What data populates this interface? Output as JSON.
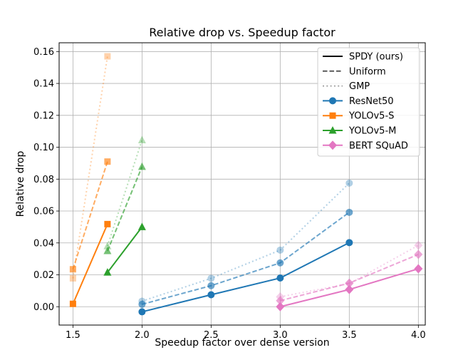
{
  "chart_data": {
    "type": "line",
    "title": "Relative drop vs. Speedup factor",
    "xlabel": "Speedup factor over dense version",
    "ylabel": "Relative drop",
    "xlim": [
      1.4,
      4.05
    ],
    "ylim": [
      -0.0115,
      0.1655
    ],
    "xticks": [
      1.5,
      2.0,
      2.5,
      3.0,
      3.5,
      4.0
    ],
    "xtick_labels": [
      "1.5",
      "2.0",
      "2.5",
      "3.0",
      "3.5",
      "4.0"
    ],
    "yticks": [
      0.0,
      0.02,
      0.04,
      0.06,
      0.08,
      0.1,
      0.12,
      0.14,
      0.16
    ],
    "ytick_labels": [
      "0.00",
      "0.02",
      "0.04",
      "0.06",
      "0.08",
      "0.10",
      "0.12",
      "0.14",
      "0.16"
    ],
    "grid": true,
    "legend_position": "top-right",
    "methods": [
      {
        "name": "SPDY (ours)",
        "style": "solid",
        "opacity": 1.0
      },
      {
        "name": "Uniform",
        "style": "dashed",
        "opacity": 0.65
      },
      {
        "name": "GMP",
        "style": "dotted",
        "opacity": 0.35
      }
    ],
    "models": [
      {
        "name": "ResNet50",
        "color": "#1f77b4",
        "marker": "circle"
      },
      {
        "name": "YOLOv5-S",
        "color": "#ff7f0e",
        "marker": "square"
      },
      {
        "name": "YOLOv5-M",
        "color": "#2ca02c",
        "marker": "triangle"
      },
      {
        "name": "BERT SQuAD",
        "color": "#e377c2",
        "marker": "diamond"
      }
    ],
    "series": [
      {
        "model": "ResNet50",
        "method": "SPDY (ours)",
        "x": [
          2.0,
          2.5,
          3.0,
          3.5
        ],
        "y": [
          -0.0032,
          0.0075,
          0.018,
          0.0402
        ]
      },
      {
        "model": "ResNet50",
        "method": "Uniform",
        "x": [
          2.0,
          2.5,
          3.0,
          3.5
        ],
        "y": [
          0.0015,
          0.0132,
          0.0275,
          0.0592
        ]
      },
      {
        "model": "ResNet50",
        "method": "GMP",
        "x": [
          2.0,
          2.5,
          3.0,
          3.5
        ],
        "y": [
          0.0035,
          0.0178,
          0.0355,
          0.0775
        ]
      },
      {
        "model": "YOLOv5-S",
        "method": "SPDY (ours)",
        "x": [
          1.5,
          1.75
        ],
        "y": [
          0.0018,
          0.0518
        ]
      },
      {
        "model": "YOLOv5-S",
        "method": "Uniform",
        "x": [
          1.5,
          1.75
        ],
        "y": [
          0.0235,
          0.091
        ]
      },
      {
        "model": "YOLOv5-S",
        "method": "GMP",
        "x": [
          1.5,
          1.75
        ],
        "y": [
          0.0178,
          0.157
        ]
      },
      {
        "model": "YOLOv5-M",
        "method": "SPDY (ours)",
        "x": [
          1.75,
          2.0
        ],
        "y": [
          0.0215,
          0.05
        ]
      },
      {
        "model": "YOLOv5-M",
        "method": "Uniform",
        "x": [
          1.75,
          2.0
        ],
        "y": [
          0.035,
          0.0878
        ]
      },
      {
        "model": "YOLOv5-M",
        "method": "GMP",
        "x": [
          1.75,
          2.0
        ],
        "y": [
          0.038,
          0.1045
        ]
      },
      {
        "model": "BERT SQuAD",
        "method": "SPDY (ours)",
        "x": [
          3.0,
          3.5,
          4.0
        ],
        "y": [
          0.0,
          0.0108,
          0.0238
        ]
      },
      {
        "model": "BERT SQuAD",
        "method": "Uniform",
        "x": [
          3.0,
          3.5,
          4.0
        ],
        "y": [
          0.0038,
          0.0148,
          0.0328
        ]
      },
      {
        "model": "BERT SQuAD",
        "method": "GMP",
        "x": [
          3.0,
          3.5,
          4.0
        ],
        "y": [
          0.0062,
          0.0145,
          0.0385
        ]
      }
    ]
  }
}
